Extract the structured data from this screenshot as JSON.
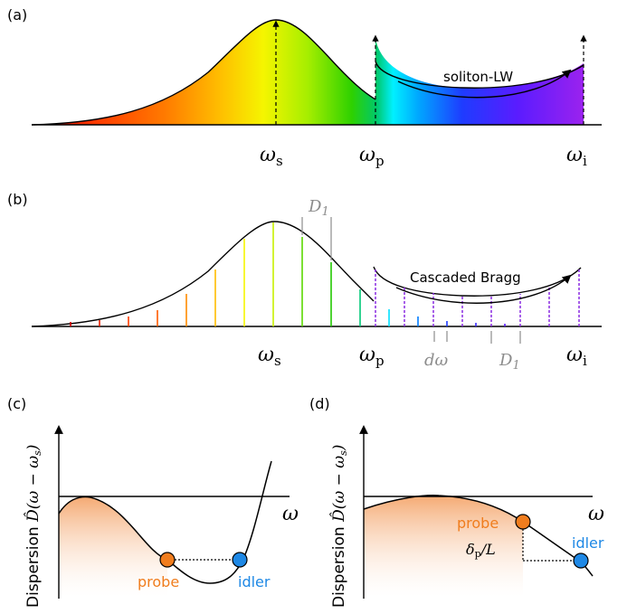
{
  "panels": {
    "a": {
      "label": "(a)",
      "omega_s": "ω",
      "omega_s_sub": "s",
      "omega_p": "ω",
      "omega_p_sub": "p",
      "omega_i": "ω",
      "omega_i_sub": "i",
      "arc_label": "soliton-LW"
    },
    "b": {
      "label": "(b)",
      "d1_top": "D",
      "d1_top_sub": "1",
      "d1_bottom": "D",
      "d1_bottom_sub": "1",
      "domega": "dω",
      "arc_label": "Cascaded Bragg",
      "omega_s": "ω",
      "omega_s_sub": "s",
      "omega_p": "ω",
      "omega_p_sub": "p",
      "omega_i": "ω",
      "omega_i_sub": "i"
    },
    "c": {
      "label": "(c)",
      "y_label_text": "Dispersion ",
      "y_label_math": "D̂(ω − ω",
      "y_label_sub": "s",
      "y_label_close": ")",
      "x_label": "ω",
      "probe": "probe",
      "idler": "idler"
    },
    "d": {
      "label": "(d)",
      "y_label_text": "Dispersion ",
      "y_label_math": "D̂(ω − ω",
      "y_label_sub": "s",
      "y_label_close": ")",
      "x_label": "ω",
      "probe": "probe",
      "idler": "idler",
      "delta_label": "δ",
      "delta_sub": "p",
      "delta_tail": "/L"
    }
  },
  "colors": {
    "probe": "#f07d1e",
    "idler": "#1e88e5",
    "gray": "#8c8c8c",
    "bragg_line": "#8a2be2",
    "fill_orange": "#f5b78a"
  }
}
